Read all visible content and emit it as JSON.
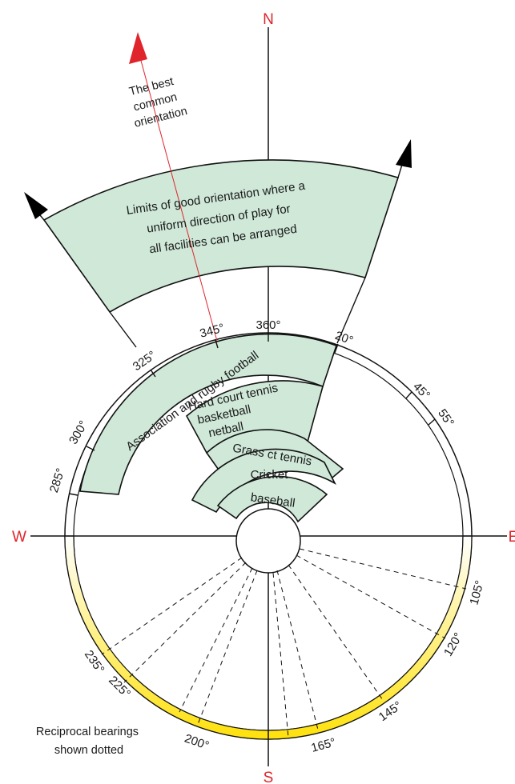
{
  "compass": {
    "north": "N",
    "south": "S",
    "west": "W",
    "east": "E"
  },
  "colors": {
    "cardinal": "#e0242b",
    "sector_fill": "#cfe8d8",
    "outline": "#111111",
    "reciprocal_gradient_start": "#ffffff",
    "reciprocal_gradient_end": "#ffe000",
    "best_orientation_arrow": "#e0242b",
    "limit_arrows": "#000000"
  },
  "annotations": {
    "best_orientation": [
      "The best",
      "common",
      "orientation"
    ],
    "limits": [
      "Limits of good orientation where a",
      "uniform direction of play for",
      "all facilities can be arranged"
    ],
    "reciprocal": [
      "Reciprocal bearings",
      "shown dotted"
    ]
  },
  "facilities": [
    {
      "lines": [
        "Association and rugby football"
      ],
      "from_bearing": 285,
      "to_bearing": 20
    },
    {
      "lines": [
        "Hard court tennis",
        "basketball",
        "netball"
      ],
      "from_bearing": 335,
      "to_bearing": 20
    },
    {
      "lines": [
        "Grass ct tennis"
      ],
      "from_bearing": 330,
      "to_bearing": 50
    },
    {
      "lines": [
        "Cricket"
      ],
      "from_bearing": 315,
      "to_bearing": 45
    },
    {
      "lines": [
        "baseball"
      ],
      "from_bearing": 335,
      "to_bearing": 45
    }
  ],
  "bearings": {
    "primary": [
      "285°",
      "300°",
      "325°",
      "345°",
      "360°",
      "20°",
      "45°",
      "55°"
    ],
    "reciprocal": [
      "105°",
      "120°",
      "145°",
      "165°",
      "200°",
      "225°",
      "235°"
    ]
  }
}
